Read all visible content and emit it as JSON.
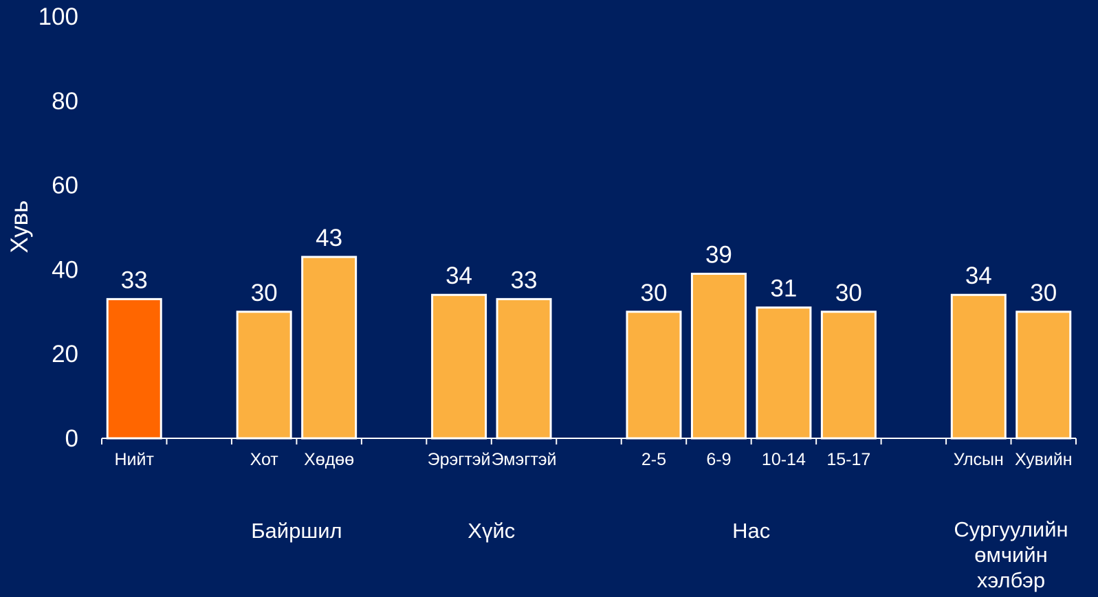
{
  "chart_data": {
    "type": "bar",
    "ylabel": "Хувь",
    "ylim": [
      0,
      100
    ],
    "yticks": [
      0,
      20,
      40,
      60,
      80,
      100
    ],
    "categories": [
      "Нийт",
      "Хот",
      "Хөдөө",
      "Эрэгтэй",
      "Эмэгтэй",
      "2-5",
      "6-9",
      "10-14",
      "15-17",
      "Улсын",
      "Хувийн"
    ],
    "values": [
      33,
      30,
      43,
      34,
      33,
      30,
      39,
      31,
      30,
      34,
      30
    ],
    "data_labels": [
      "33",
      "30",
      "43",
      "34",
      "33",
      "30",
      "39",
      "31",
      "30",
      "34",
      "30"
    ],
    "groups": [
      {
        "label": "",
        "members": [
          "Нийт"
        ]
      },
      {
        "label": "Байршил",
        "members": [
          "Хот",
          "Хөдөө"
        ]
      },
      {
        "label": "Хүйс",
        "members": [
          "Эрэгтэй",
          "Эмэгтэй"
        ]
      },
      {
        "label": "Нас",
        "members": [
          "2-5",
          "6-9",
          "10-14",
          "15-17"
        ]
      },
      {
        "label": "Сургуулийн өмчийн хэлбэр",
        "label_lines": [
          "Сургуулийн",
          "өмчийн",
          "хэлбэр"
        ],
        "members": [
          "Улсын",
          "Хувийн"
        ]
      }
    ],
    "grid": false,
    "legend": "none"
  },
  "colors": {
    "background": "#001F5F",
    "highlight_bar": "#FF6600",
    "bar": "#FBB040",
    "bar_outline": "#FFFFFF",
    "text": "#FFFFFF",
    "axis": "#FFFFFF"
  }
}
